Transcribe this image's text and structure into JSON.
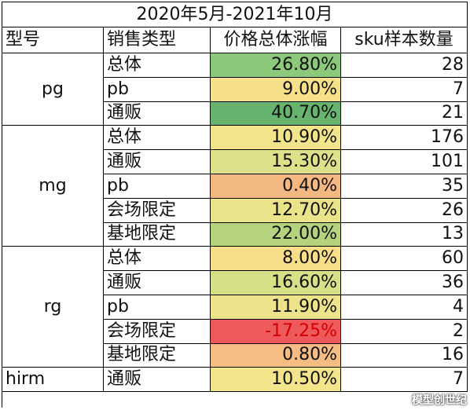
{
  "title": "2020年5月-2021年10月",
  "headers": [
    "型号",
    "销售类型",
    "价格总体涨幅",
    "sku样本数量"
  ],
  "groups": [
    {
      "model": "pg",
      "rows": [
        {
          "type": "总体",
          "increase": "26.80%",
          "count": "28",
          "color": "#8cc97b"
        },
        {
          "type": "pb",
          "increase": "9.00%",
          "count": "7",
          "color": "#f6e08a"
        },
        {
          "type": "通贩",
          "increase": "40.70%",
          "count": "21",
          "color": "#66b46d"
        }
      ]
    },
    {
      "model": "mg",
      "rows": [
        {
          "type": "总体",
          "increase": "10.90%",
          "count": "176",
          "color": "#f1e48a"
        },
        {
          "type": "通贩",
          "increase": "15.30%",
          "count": "101",
          "color": "#dde18a"
        },
        {
          "type": "pb",
          "increase": "0.40%",
          "count": "35",
          "color": "#f4b883"
        },
        {
          "type": "会场限定",
          "increase": "12.70%",
          "count": "26",
          "color": "#e9e38a"
        },
        {
          "type": "基地限定",
          "increase": "22.00%",
          "count": "13",
          "color": "#b5d37f"
        }
      ]
    },
    {
      "model": "rg",
      "rows": [
        {
          "type": "总体",
          "increase": "8.00%",
          "count": "60",
          "color": "#f8de89"
        },
        {
          "type": "通贩",
          "increase": "16.60%",
          "count": "36",
          "color": "#d7df88"
        },
        {
          "type": "pb",
          "increase": "11.90%",
          "count": "4",
          "color": "#ede38b"
        },
        {
          "type": "会场限定",
          "increase": "-17.25%",
          "count": "2",
          "color": "#ee5a5c",
          "negative": true
        },
        {
          "type": "基地限定",
          "increase": "0.80%",
          "count": "16",
          "color": "#f5bc84"
        }
      ]
    },
    {
      "model": "hirm",
      "rows": [
        {
          "type": "通贩",
          "increase": "10.50%",
          "count": "7",
          "color": "#f2e48a"
        }
      ]
    }
  ],
  "watermark": "模型创世纪"
}
